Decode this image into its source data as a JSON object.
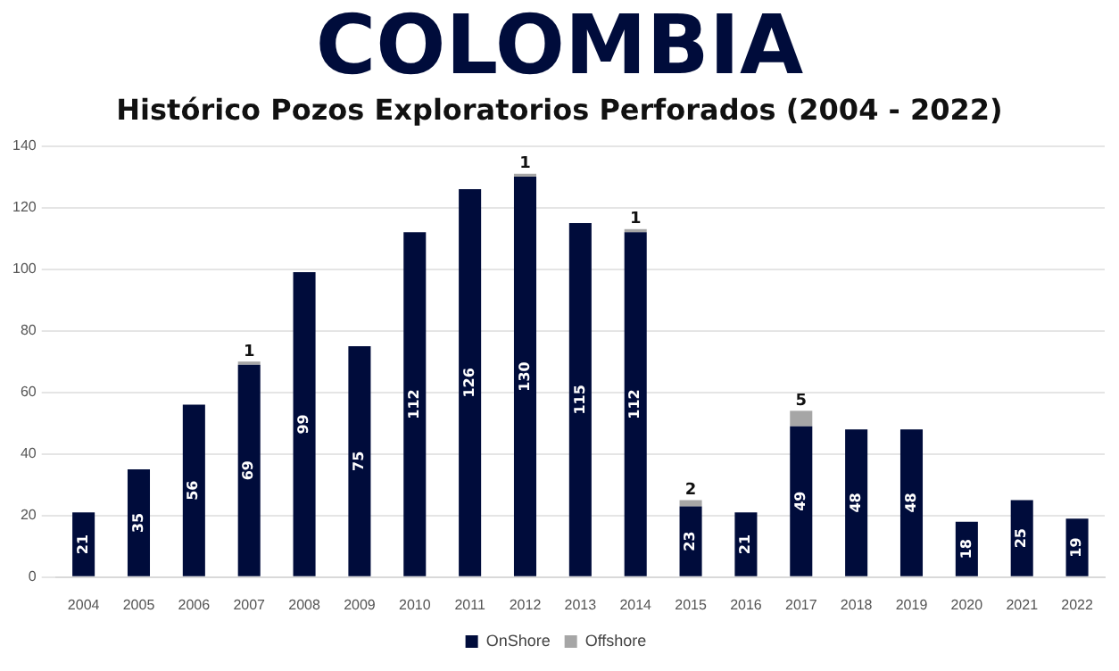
{
  "chart_data": {
    "type": "bar",
    "title": "COLOMBIA",
    "subtitle": "Histórico Pozos Exploratorios Perforados (2004 - 2022)",
    "categories": [
      "2004",
      "2005",
      "2006",
      "2007",
      "2008",
      "2009",
      "2010",
      "2011",
      "2012",
      "2013",
      "2014",
      "2015",
      "2016",
      "2017",
      "2018",
      "2019",
      "2020",
      "2021",
      "2022"
    ],
    "series": [
      {
        "name": "OnShore",
        "color": "#000c3b",
        "values": [
          21,
          35,
          56,
          69,
          99,
          75,
          112,
          126,
          130,
          115,
          112,
          23,
          21,
          49,
          48,
          48,
          18,
          25,
          19
        ]
      },
      {
        "name": "Offshore",
        "color": "#a6a6a6",
        "values": [
          null,
          null,
          null,
          1,
          null,
          null,
          null,
          null,
          1,
          null,
          1,
          2,
          null,
          5,
          null,
          null,
          null,
          null,
          null
        ]
      }
    ],
    "stacked": true,
    "data_labels": true,
    "ylim": [
      0,
      140
    ],
    "yticks": [
      0,
      20,
      40,
      60,
      80,
      100,
      120,
      140
    ],
    "grid": "y",
    "legend": "bottom"
  }
}
